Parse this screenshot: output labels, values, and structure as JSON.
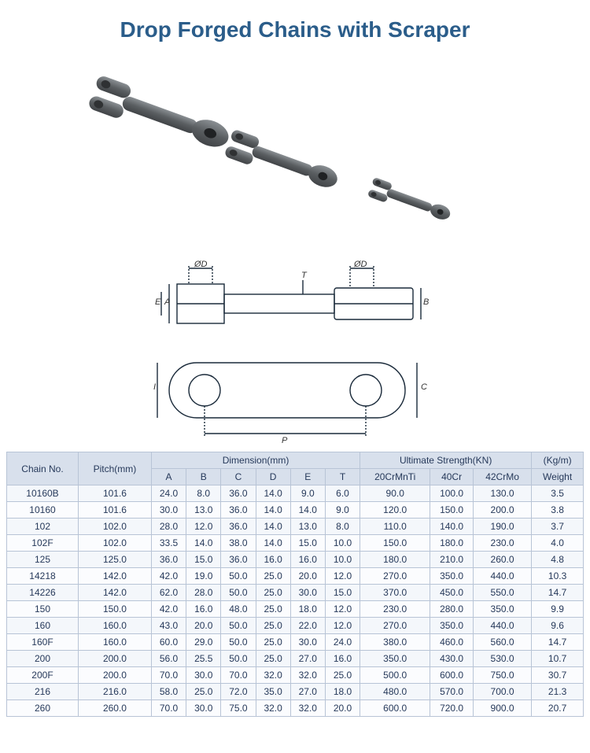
{
  "title": "Drop Forged Chains with Scraper",
  "diagram_labels": {
    "d1": "ØD",
    "d2": "ØD",
    "a": "A",
    "e": "E",
    "t": "T",
    "b": "B",
    "c": "C",
    "p": "P"
  },
  "table": {
    "headers": {
      "chain_no": "Chain No.",
      "pitch": "Pitch(mm)",
      "dimension": "Dimension(mm)",
      "dims": [
        "A",
        "B",
        "C",
        "D",
        "E",
        "T"
      ],
      "strength": "Ultimate Strength(KN)",
      "mats": [
        "20CrMnTi",
        "40Cr",
        "42CrMo"
      ],
      "kgm": "(Kg/m)",
      "weight": "Weight"
    },
    "rows": [
      [
        "10160B",
        "101.6",
        "24.0",
        "8.0",
        "36.0",
        "14.0",
        "9.0",
        "6.0",
        "90.0",
        "100.0",
        "130.0",
        "3.5"
      ],
      [
        "10160",
        "101.6",
        "30.0",
        "13.0",
        "36.0",
        "14.0",
        "14.0",
        "9.0",
        "120.0",
        "150.0",
        "200.0",
        "3.8"
      ],
      [
        "102",
        "102.0",
        "28.0",
        "12.0",
        "36.0",
        "14.0",
        "13.0",
        "8.0",
        "110.0",
        "140.0",
        "190.0",
        "3.7"
      ],
      [
        "102F",
        "102.0",
        "33.5",
        "14.0",
        "38.0",
        "14.0",
        "15.0",
        "10.0",
        "150.0",
        "180.0",
        "230.0",
        "4.0"
      ],
      [
        "125",
        "125.0",
        "36.0",
        "15.0",
        "36.0",
        "16.0",
        "16.0",
        "10.0",
        "180.0",
        "210.0",
        "260.0",
        "4.8"
      ],
      [
        "14218",
        "142.0",
        "42.0",
        "19.0",
        "50.0",
        "25.0",
        "20.0",
        "12.0",
        "270.0",
        "350.0",
        "440.0",
        "10.3"
      ],
      [
        "14226",
        "142.0",
        "62.0",
        "28.0",
        "50.0",
        "25.0",
        "30.0",
        "15.0",
        "370.0",
        "450.0",
        "550.0",
        "14.7"
      ],
      [
        "150",
        "150.0",
        "42.0",
        "16.0",
        "48.0",
        "25.0",
        "18.0",
        "12.0",
        "230.0",
        "280.0",
        "350.0",
        "9.9"
      ],
      [
        "160",
        "160.0",
        "43.0",
        "20.0",
        "50.0",
        "25.0",
        "22.0",
        "12.0",
        "270.0",
        "350.0",
        "440.0",
        "9.6"
      ],
      [
        "160F",
        "160.0",
        "60.0",
        "29.0",
        "50.0",
        "25.0",
        "30.0",
        "24.0",
        "380.0",
        "460.0",
        "560.0",
        "14.7"
      ],
      [
        "200",
        "200.0",
        "56.0",
        "25.5",
        "50.0",
        "25.0",
        "27.0",
        "16.0",
        "350.0",
        "430.0",
        "530.0",
        "10.7"
      ],
      [
        "200F",
        "200.0",
        "70.0",
        "30.0",
        "70.0",
        "32.0",
        "32.0",
        "25.0",
        "500.0",
        "600.0",
        "750.0",
        "30.7"
      ],
      [
        "216",
        "216.0",
        "58.0",
        "25.0",
        "72.0",
        "35.0",
        "27.0",
        "18.0",
        "480.0",
        "570.0",
        "700.0",
        "21.3"
      ],
      [
        "260",
        "260.0",
        "70.0",
        "30.0",
        "75.0",
        "32.0",
        "32.0",
        "20.0",
        "600.0",
        "720.0",
        "900.0",
        "20.7"
      ]
    ]
  }
}
